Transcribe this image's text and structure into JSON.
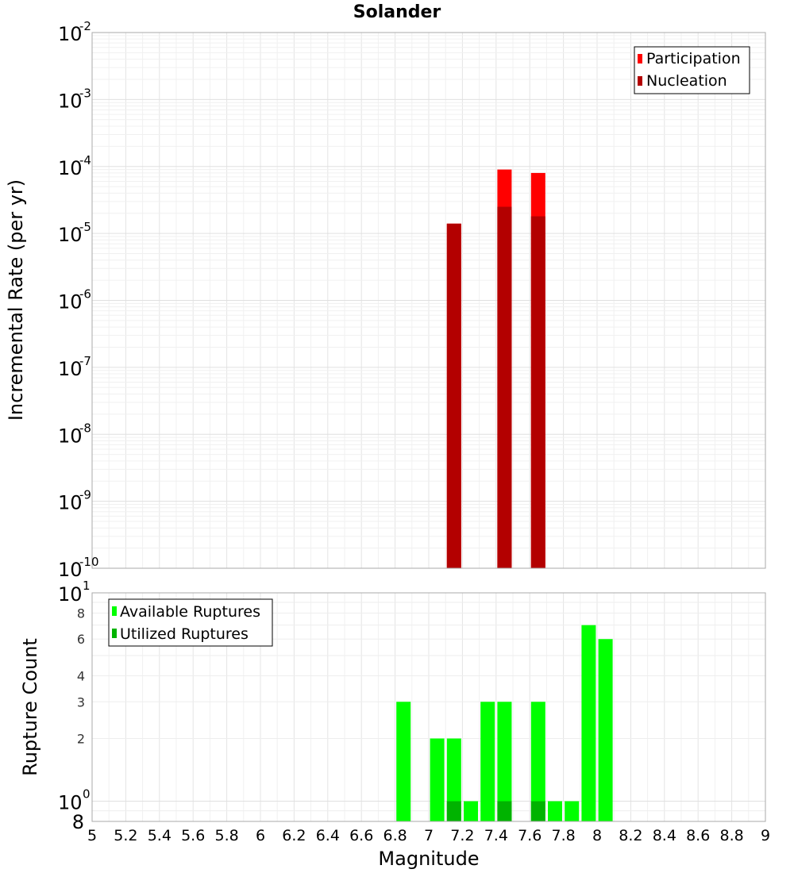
{
  "chart_data": [
    {
      "type": "bar",
      "title": "Solander",
      "ylabel": "Incremental Rate (per yr)",
      "xlabel": "",
      "xlim": [
        5,
        9
      ],
      "ylim": [
        1e-10,
        0.01
      ],
      "y_scale": "log",
      "grid": true,
      "legend_position": "top-right",
      "series": [
        {
          "name": "Participation",
          "color": "#ff0000",
          "x": [
            7.15,
            7.45,
            7.65
          ],
          "values": [
            1.4e-05,
            9e-05,
            8e-05
          ]
        },
        {
          "name": "Nucleation",
          "color": "#b30000",
          "x": [
            7.15,
            7.45,
            7.65
          ],
          "values": [
            1.4e-05,
            2.5e-05,
            1.8e-05
          ]
        }
      ],
      "y_tick_labels": [
        {
          "base": "10",
          "exp": "-2"
        },
        {
          "base": "10",
          "exp": "-3"
        },
        {
          "base": "10",
          "exp": "-4"
        },
        {
          "base": "10",
          "exp": "-5"
        },
        {
          "base": "10",
          "exp": "-6"
        },
        {
          "base": "10",
          "exp": "-7"
        },
        {
          "base": "10",
          "exp": "-8"
        },
        {
          "base": "10",
          "exp": "-9"
        },
        {
          "base": "10",
          "exp": "-10"
        }
      ]
    },
    {
      "type": "bar",
      "title": "",
      "ylabel": "Rupture Count",
      "xlabel": "Magnitude",
      "xlim": [
        5,
        9
      ],
      "ylim": [
        0.8,
        10
      ],
      "y_scale": "log",
      "grid": true,
      "legend_position": "top-left",
      "series": [
        {
          "name": "Available Ruptures",
          "color": "#00ff00",
          "x": [
            6.85,
            7.05,
            7.15,
            7.25,
            7.35,
            7.45,
            7.65,
            7.75,
            7.85,
            7.95,
            8.05
          ],
          "values": [
            3,
            2,
            2,
            1,
            3,
            3,
            3,
            1,
            1,
            7,
            6
          ]
        },
        {
          "name": "Utilized Ruptures",
          "color": "#00b300",
          "x": [
            7.15,
            7.45,
            7.65
          ],
          "values": [
            1,
            1,
            1
          ]
        }
      ],
      "x_tick_labels": [
        "5",
        "5.2",
        "5.4",
        "5.6",
        "5.8",
        "6",
        "6.2",
        "6.4",
        "6.6",
        "6.8",
        "7",
        "7.2",
        "7.4",
        "7.6",
        "7.8",
        "8",
        "8.2",
        "8.4",
        "8.6",
        "8.8",
        "9"
      ],
      "y_tick_labels_major": [
        {
          "base": "10",
          "exp": "1",
          "value": 10
        },
        {
          "base": "10",
          "exp": "0",
          "value": 1
        }
      ],
      "y_tick_labels_minor": [
        {
          "label": "8",
          "value": 8
        },
        {
          "label": "6",
          "value": 6
        },
        {
          "label": "4",
          "value": 4
        },
        {
          "label": "3",
          "value": 3
        },
        {
          "label": "2",
          "value": 2
        }
      ],
      "y_bottom_label": "8"
    }
  ]
}
